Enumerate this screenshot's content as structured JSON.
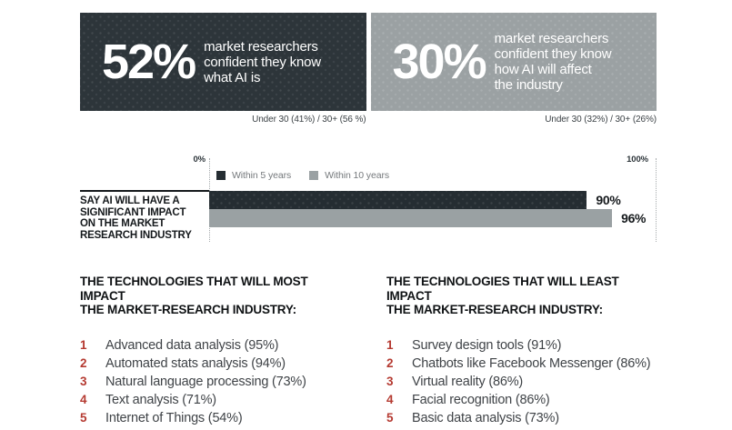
{
  "stats": [
    {
      "value": "52%",
      "description": "market researchers\nconfident they know\nwhat AI is",
      "breakdown": "Under 30 (41%) / 30+ (56 %)"
    },
    {
      "value": "30%",
      "description": "market researchers\nconfident they know\nhow AI will affect\nthe industry",
      "breakdown": "Under 30 (32%) / 30+ (26%)"
    }
  ],
  "chart_data": {
    "type": "bar",
    "orientation": "horizontal",
    "title": "SAY AI WILL HAVE A\nSIGNIFICANT IMPACT\nON THE MARKET\nRESEARCH INDUSTRY",
    "axis": {
      "min_label": "0%",
      "max_label": "100%",
      "xlim": [
        0,
        100
      ],
      "grid": "dotted-endpoints-only"
    },
    "legend": [
      {
        "label": "Within 5 years",
        "color": "#252d32"
      },
      {
        "label": "Within 10 years",
        "color": "#9aa1a3"
      }
    ],
    "series": [
      {
        "name": "Within 5 years",
        "value": 90,
        "label": "90%"
      },
      {
        "name": "Within 10 years",
        "value": 96,
        "label": "96%"
      }
    ],
    "legend_position": "top"
  },
  "lists": [
    {
      "title": "THE TECHNOLOGIES THAT WILL MOST IMPACT\nTHE MARKET-RESEARCH INDUSTRY:",
      "items": [
        {
          "rank": "1",
          "text": "Advanced data analysis (95%)"
        },
        {
          "rank": "2",
          "text": "Automated stats analysis (94%)"
        },
        {
          "rank": "3",
          "text": "Natural language processing (73%)"
        },
        {
          "rank": "4",
          "text": "Text analysis (71%)"
        },
        {
          "rank": "5",
          "text": "Internet of Things (54%)"
        }
      ]
    },
    {
      "title": "THE TECHNOLOGIES THAT WILL LEAST IMPACT\nTHE MARKET-RESEARCH INDUSTRY:",
      "items": [
        {
          "rank": "1",
          "text": "Survey design tools (91%)"
        },
        {
          "rank": "2",
          "text": "Chatbots like Facebook Messenger (86%)"
        },
        {
          "rank": "3",
          "text": "Virtual reality (86%)"
        },
        {
          "rank": "4",
          "text": "Facial recognition (86%)"
        },
        {
          "rank": "5",
          "text": "Basic data analysis (73%)"
        }
      ]
    }
  ],
  "colors": {
    "dark_box": "#2d353a",
    "gray_box": "#9ba1a3",
    "bar_dark": "#252d32",
    "bar_gray": "#9aa1a3",
    "accent_red": "#b53a31",
    "background": "#ffffff"
  }
}
